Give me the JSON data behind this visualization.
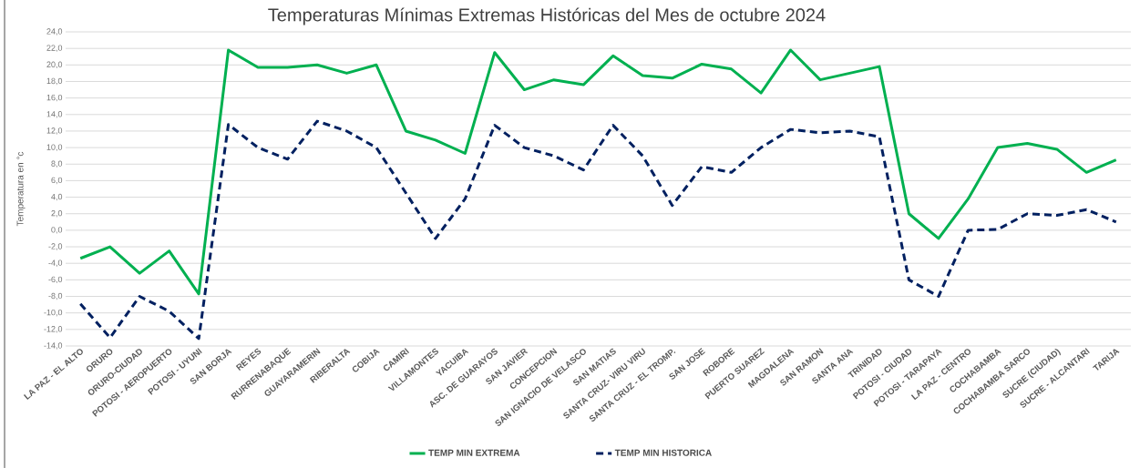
{
  "chart_data": {
    "type": "line",
    "title": "Temperaturas Mínimas Extremas Históricas del Mes de octubre 2024",
    "ylabel": "Temperatura en °c",
    "categories": [
      "LA PAZ - EL ALTO",
      "ORURO",
      "ORURO-CIUDAD",
      "POTOSI - AEROPUERTO",
      "POTOSI - UYUNI",
      "SAN BORJA",
      "REYES",
      "RURRENABAQUE",
      "GUAYARAMERIN",
      "RIBERALTA",
      "COBIJA",
      "CAMIRI",
      "VILLAMONTES",
      "YACUIBA",
      "ASC. DE GUARAYOS",
      "SAN JAVIER",
      "CONCEPCION",
      "SAN IGNACIO DE VELASCO",
      "SAN MATIAS",
      "SANTA CRUZ- VIRU VIRU",
      "SANTA CRUZ - EL TROMP.",
      "SAN JOSE",
      "ROBORE",
      "PUERTO SUAREZ",
      "MAGDALENA",
      "SAN RAMON",
      "SANTA ANA",
      "TRINIDAD",
      "POTOSI - CIUDAD",
      "POTOSI - TARAPAYA",
      "LA PAZ - CENTRO",
      "COCHABAMBA",
      "COCHABAMBA SARCO",
      "SUCRE (CIUDAD)",
      "SUCRE - ALCANTARI",
      "TARIJA"
    ],
    "series": [
      {
        "name": "TEMP MIN EXTREMA",
        "color": "#00b050",
        "line_style": "solid",
        "values": [
          -3.4,
          -2.0,
          -5.2,
          -2.5,
          -7.7,
          21.8,
          19.7,
          19.7,
          20.0,
          19.0,
          20.0,
          12.0,
          10.9,
          9.3,
          21.5,
          17.0,
          18.2,
          17.6,
          21.1,
          18.7,
          18.4,
          20.1,
          19.5,
          16.6,
          21.8,
          18.2,
          19.0,
          19.8,
          2.0,
          -1.0,
          3.8,
          10.0,
          10.5,
          9.8,
          7.0,
          8.5
        ]
      },
      {
        "name": "TEMP MIN HISTORICA",
        "color": "#002060",
        "line_style": "dashed",
        "values": [
          -8.9,
          -13.0,
          -8.0,
          -9.8,
          -13.1,
          12.8,
          10.0,
          8.6,
          13.2,
          12.0,
          10.0,
          4.5,
          -1.0,
          3.8,
          12.7,
          10.0,
          9.0,
          7.3,
          12.7,
          9.0,
          3.0,
          7.7,
          7.0,
          10.0,
          12.2,
          11.8,
          12.0,
          11.3,
          -6.0,
          -8.0,
          0.0,
          0.1,
          2.0,
          1.8,
          2.5,
          1.0
        ]
      }
    ],
    "ylim": [
      -14,
      24
    ],
    "yticks": [
      {
        "value": -14,
        "label": "-14,0"
      },
      {
        "value": -12,
        "label": "-12,0"
      },
      {
        "value": -10,
        "label": "-10,0"
      },
      {
        "value": -8,
        "label": "-8,0"
      },
      {
        "value": -6,
        "label": "-6,0"
      },
      {
        "value": -4,
        "label": "-4,0"
      },
      {
        "value": -2,
        "label": "-2,0"
      },
      {
        "value": 0,
        "label": "0,0"
      },
      {
        "value": 2,
        "label": "2,0"
      },
      {
        "value": 4,
        "label": "4,0"
      },
      {
        "value": 6,
        "label": "6,0"
      },
      {
        "value": 8,
        "label": "8,0"
      },
      {
        "value": 10,
        "label": "10,0"
      },
      {
        "value": 12,
        "label": "12,0"
      },
      {
        "value": 14,
        "label": "14,0"
      },
      {
        "value": 16,
        "label": "16,0"
      },
      {
        "value": 18,
        "label": "18,0"
      },
      {
        "value": 20,
        "label": "20,0"
      },
      {
        "value": 22,
        "label": "22,0"
      },
      {
        "value": 24,
        "label": "24,0"
      }
    ],
    "grid": "y",
    "legend": "bottom",
    "marker": "none"
  }
}
